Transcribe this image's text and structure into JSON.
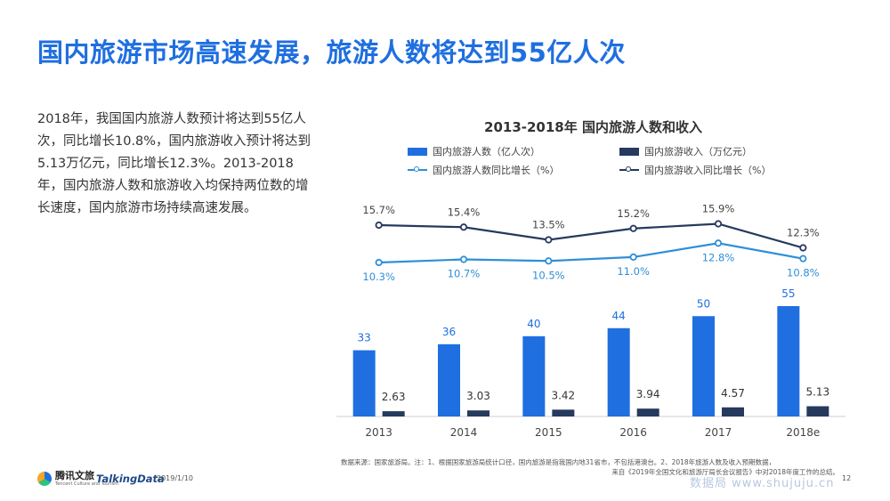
{
  "page": {
    "title": "国内旅游市场高速发展，旅游人数将达到55亿人次",
    "description": "2018年，我国国内旅游人数预计将达到55亿人次，同比增长10.8%，国内旅游收入预计将达到5.13万亿元，同比增长12.3%。2013-2018年，国内旅游人数和旅游收入均保持两位数的增长速度，国内旅游市场持续高速发展。",
    "source_line1": "数据来源：国家旅游局。注：1、根据国家旅游局统计口径，国内旅游是指我国内地31省市，不包括港澳台。2、2018年旅游人数及收入预期数据，",
    "source_line2": "来自《2019年全国文化和旅游厅局长会议报告》中对2018年度工作的总结。",
    "brand1": "腾讯文旅",
    "brand1_sub": "Tencent Culture and Tourism",
    "brand2": "TalkingData",
    "date": "2019/1/10",
    "page_number": "12",
    "watermark": "数据局 www.shujuju.cn"
  },
  "chart_data": {
    "type": "bar",
    "title": "2013-2018年 国内旅游人数和收入",
    "categories": [
      "2013",
      "2014",
      "2015",
      "2016",
      "2017",
      "2018e"
    ],
    "series": [
      {
        "name": "国内旅游人数（亿人次）",
        "type": "bar",
        "color": "#1f6fe0",
        "values": [
          33,
          36,
          40,
          44,
          50,
          55
        ],
        "labels": [
          "33",
          "36",
          "40",
          "44",
          "50",
          "55"
        ]
      },
      {
        "name": "国内旅游收入（万亿元）",
        "type": "bar",
        "color": "#263a5e",
        "values": [
          2.63,
          3.03,
          3.42,
          3.94,
          4.57,
          5.13
        ],
        "labels": [
          "2.63",
          "3.03",
          "3.42",
          "3.94",
          "4.57",
          "5.13"
        ]
      },
      {
        "name": "国内旅游人数同比增长（%）",
        "type": "line",
        "color": "#2f8fd8",
        "values": [
          10.3,
          10.7,
          10.5,
          11.0,
          12.8,
          10.8
        ],
        "labels": [
          "10.3%",
          "10.7%",
          "10.5%",
          "11.0%",
          "12.8%",
          "10.8%"
        ]
      },
      {
        "name": "国内旅游收入同比增长（%）",
        "type": "line",
        "color": "#263a5e",
        "values": [
          15.7,
          15.4,
          13.5,
          15.2,
          15.9,
          12.3
        ],
        "labels": [
          "15.7%",
          "15.4%",
          "13.5%",
          "15.2%",
          "15.9%",
          "12.3%"
        ]
      }
    ],
    "legend_position": "top",
    "grid": false
  }
}
